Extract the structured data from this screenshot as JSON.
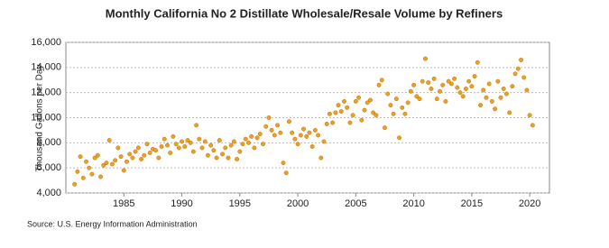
{
  "chart_data": {
    "type": "scatter",
    "title": "Monthly California No 2 Distillate Wholesale/Resale Volume by Refiners",
    "y_label": "Thousand Gallons per Day",
    "source": "Source: U.S. Energy Information Administration",
    "color": "#f0a020",
    "grid": true,
    "xlim": [
      1980,
      2021.7
    ],
    "ylim": [
      4000,
      16000
    ],
    "xticks": [
      1985,
      1990,
      1995,
      2000,
      2005,
      2010,
      2015,
      2020
    ],
    "yticks": [
      {
        "value": 4000,
        "label": "4,000"
      },
      {
        "value": 6000,
        "label": "6,000"
      },
      {
        "value": 8000,
        "label": "8,000"
      },
      {
        "value": 10000,
        "label": "10,000"
      },
      {
        "value": 12000,
        "label": "12,000"
      },
      {
        "value": 14000,
        "label": "14,000"
      },
      {
        "value": 16000,
        "label": "16,000"
      }
    ],
    "x": [
      1980.75,
      1981,
      1981.25,
      1981.5,
      1981.75,
      1982,
      1982.25,
      1982.5,
      1982.75,
      1983,
      1983.25,
      1983.5,
      1983.75,
      1984,
      1984.25,
      1984.5,
      1984.75,
      1985,
      1985.25,
      1985.5,
      1985.75,
      1986,
      1986.25,
      1986.5,
      1986.75,
      1987,
      1987.25,
      1987.5,
      1987.75,
      1988,
      1988.25,
      1988.5,
      1988.75,
      1989,
      1989.25,
      1989.5,
      1989.75,
      1990,
      1990.25,
      1990.5,
      1990.75,
      1991,
      1991.25,
      1991.5,
      1991.75,
      1992,
      1992.25,
      1992.5,
      1992.75,
      1993,
      1993.25,
      1993.5,
      1993.75,
      1994,
      1994.25,
      1994.5,
      1994.75,
      1995,
      1995.25,
      1995.5,
      1995.75,
      1996,
      1996.25,
      1996.5,
      1996.75,
      1997,
      1997.25,
      1997.5,
      1997.75,
      1998,
      1998.25,
      1998.5,
      1998.75,
      1999,
      1999.25,
      1999.5,
      1999.75,
      2000,
      2000.25,
      2000.5,
      2000.75,
      2001,
      2001.25,
      2001.5,
      2001.75,
      2002,
      2002.25,
      2002.5,
      2002.75,
      2003,
      2003.25,
      2003.5,
      2003.75,
      2004,
      2004.25,
      2004.5,
      2004.75,
      2005,
      2005.25,
      2005.5,
      2005.75,
      2006,
      2006.25,
      2006.5,
      2006.75,
      2007,
      2007.25,
      2007.5,
      2007.75,
      2008,
      2008.25,
      2008.5,
      2008.75,
      2009,
      2009.25,
      2009.5,
      2009.75,
      2010,
      2010.25,
      2010.5,
      2010.75,
      2011,
      2011.25,
      2011.5,
      2011.75,
      2012,
      2012.25,
      2012.5,
      2012.75,
      2013,
      2013.25,
      2013.5,
      2013.75,
      2014,
      2014.25,
      2014.5,
      2014.75,
      2015,
      2015.25,
      2015.5,
      2015.75,
      2016,
      2016.25,
      2016.5,
      2016.75,
      2017,
      2017.25,
      2017.5,
      2017.75,
      2018,
      2018.25,
      2018.5,
      2018.75,
      2019,
      2019.25,
      2019.5,
      2019.75,
      2020,
      2020.25
    ],
    "values": [
      4700,
      5700,
      6900,
      5200,
      6500,
      6000,
      5500,
      6800,
      7000,
      5300,
      6200,
      6400,
      8200,
      6300,
      6600,
      7600,
      6900,
      5800,
      6500,
      7100,
      6800,
      7300,
      7600,
      6700,
      7000,
      7900,
      7200,
      7500,
      7400,
      6800,
      7700,
      8300,
      7800,
      7200,
      8500,
      7900,
      7600,
      8100,
      7700,
      8200,
      8000,
      7300,
      9400,
      8300,
      7600,
      8100,
      7000,
      7800,
      7400,
      6800,
      8200,
      7100,
      7600,
      6800,
      7800,
      8100,
      6700,
      7300,
      7900,
      8300,
      8000,
      8500,
      7600,
      8400,
      8700,
      7900,
      9300,
      10000,
      9000,
      8600,
      9400,
      8800,
      6400,
      5600,
      9700,
      8800,
      8300,
      7900,
      8600,
      9100,
      8500,
      8800,
      7700,
      9000,
      8600,
      6800,
      8100,
      9500,
      10300,
      9600,
      10400,
      11000,
      10500,
      11300,
      10800,
      9600,
      10200,
      11300,
      11600,
      9800,
      10600,
      11200,
      11400,
      10400,
      10200,
      12600,
      13000,
      9200,
      11900,
      11000,
      10300,
      11500,
      8400,
      10800,
      10300,
      11200,
      12100,
      12600,
      11700,
      11500,
      12900,
      14700,
      12800,
      12300,
      13100,
      11500,
      12100,
      12600,
      11300,
      12900,
      12700,
      13100,
      12400,
      12000,
      11700,
      12300,
      12900,
      12500,
      13300,
      14400,
      11000,
      12200,
      11600,
      12700,
      11300,
      10700,
      12900,
      11600,
      12300,
      11900,
      10400,
      12500,
      13500,
      13900,
      14600,
      13200,
      12200,
      10200,
      9400
    ]
  }
}
